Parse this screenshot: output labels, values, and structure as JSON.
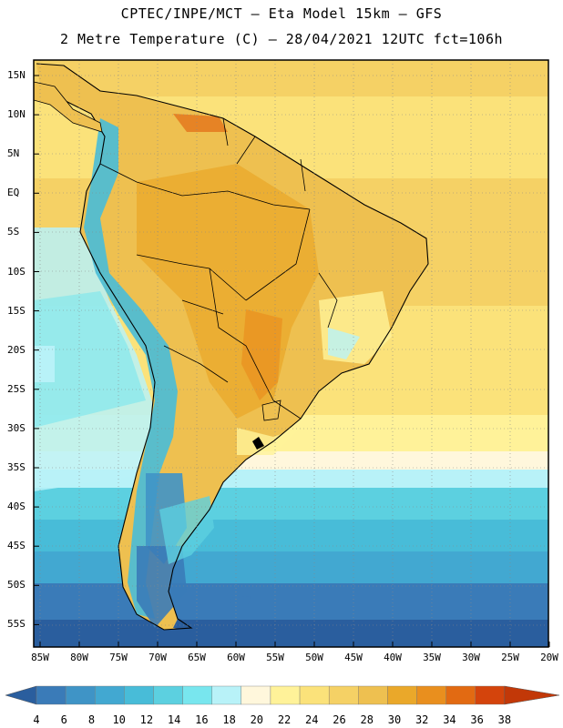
{
  "header": {
    "line1": "CPTEC/INPE/MCT –  Eta Model 15km – GFS",
    "line2": "2 Metre Temperature (C) – 28/04/2021 12UTC fct=106h"
  },
  "axes": {
    "lat_labels": [
      "15N",
      "10N",
      "5N",
      "EQ",
      "5S",
      "10S",
      "15S",
      "20S",
      "25S",
      "30S",
      "35S",
      "40S",
      "45S",
      "50S",
      "55S"
    ],
    "lon_labels": [
      "85W",
      "80W",
      "75W",
      "70W",
      "65W",
      "60W",
      "55W",
      "50W",
      "45W",
      "40W",
      "35W",
      "30W",
      "25W",
      "20W"
    ]
  },
  "colorbar": {
    "labels": [
      "4",
      "6",
      "8",
      "10",
      "12",
      "14",
      "16",
      "18",
      "20",
      "22",
      "24",
      "26",
      "28",
      "30",
      "32",
      "34",
      "36",
      "38"
    ],
    "colors": [
      "#2a5e9e",
      "#3a7bb8",
      "#3f94c6",
      "#42a8d1",
      "#48bcd8",
      "#5cd0e0",
      "#78e6ee",
      "#b8f2f8",
      "#fff7dc",
      "#fff299",
      "#fbe27a",
      "#f5d165",
      "#eec050",
      "#eaa82a",
      "#e98f1e",
      "#e26a12",
      "#d4440c",
      "#c23808"
    ]
  }
}
